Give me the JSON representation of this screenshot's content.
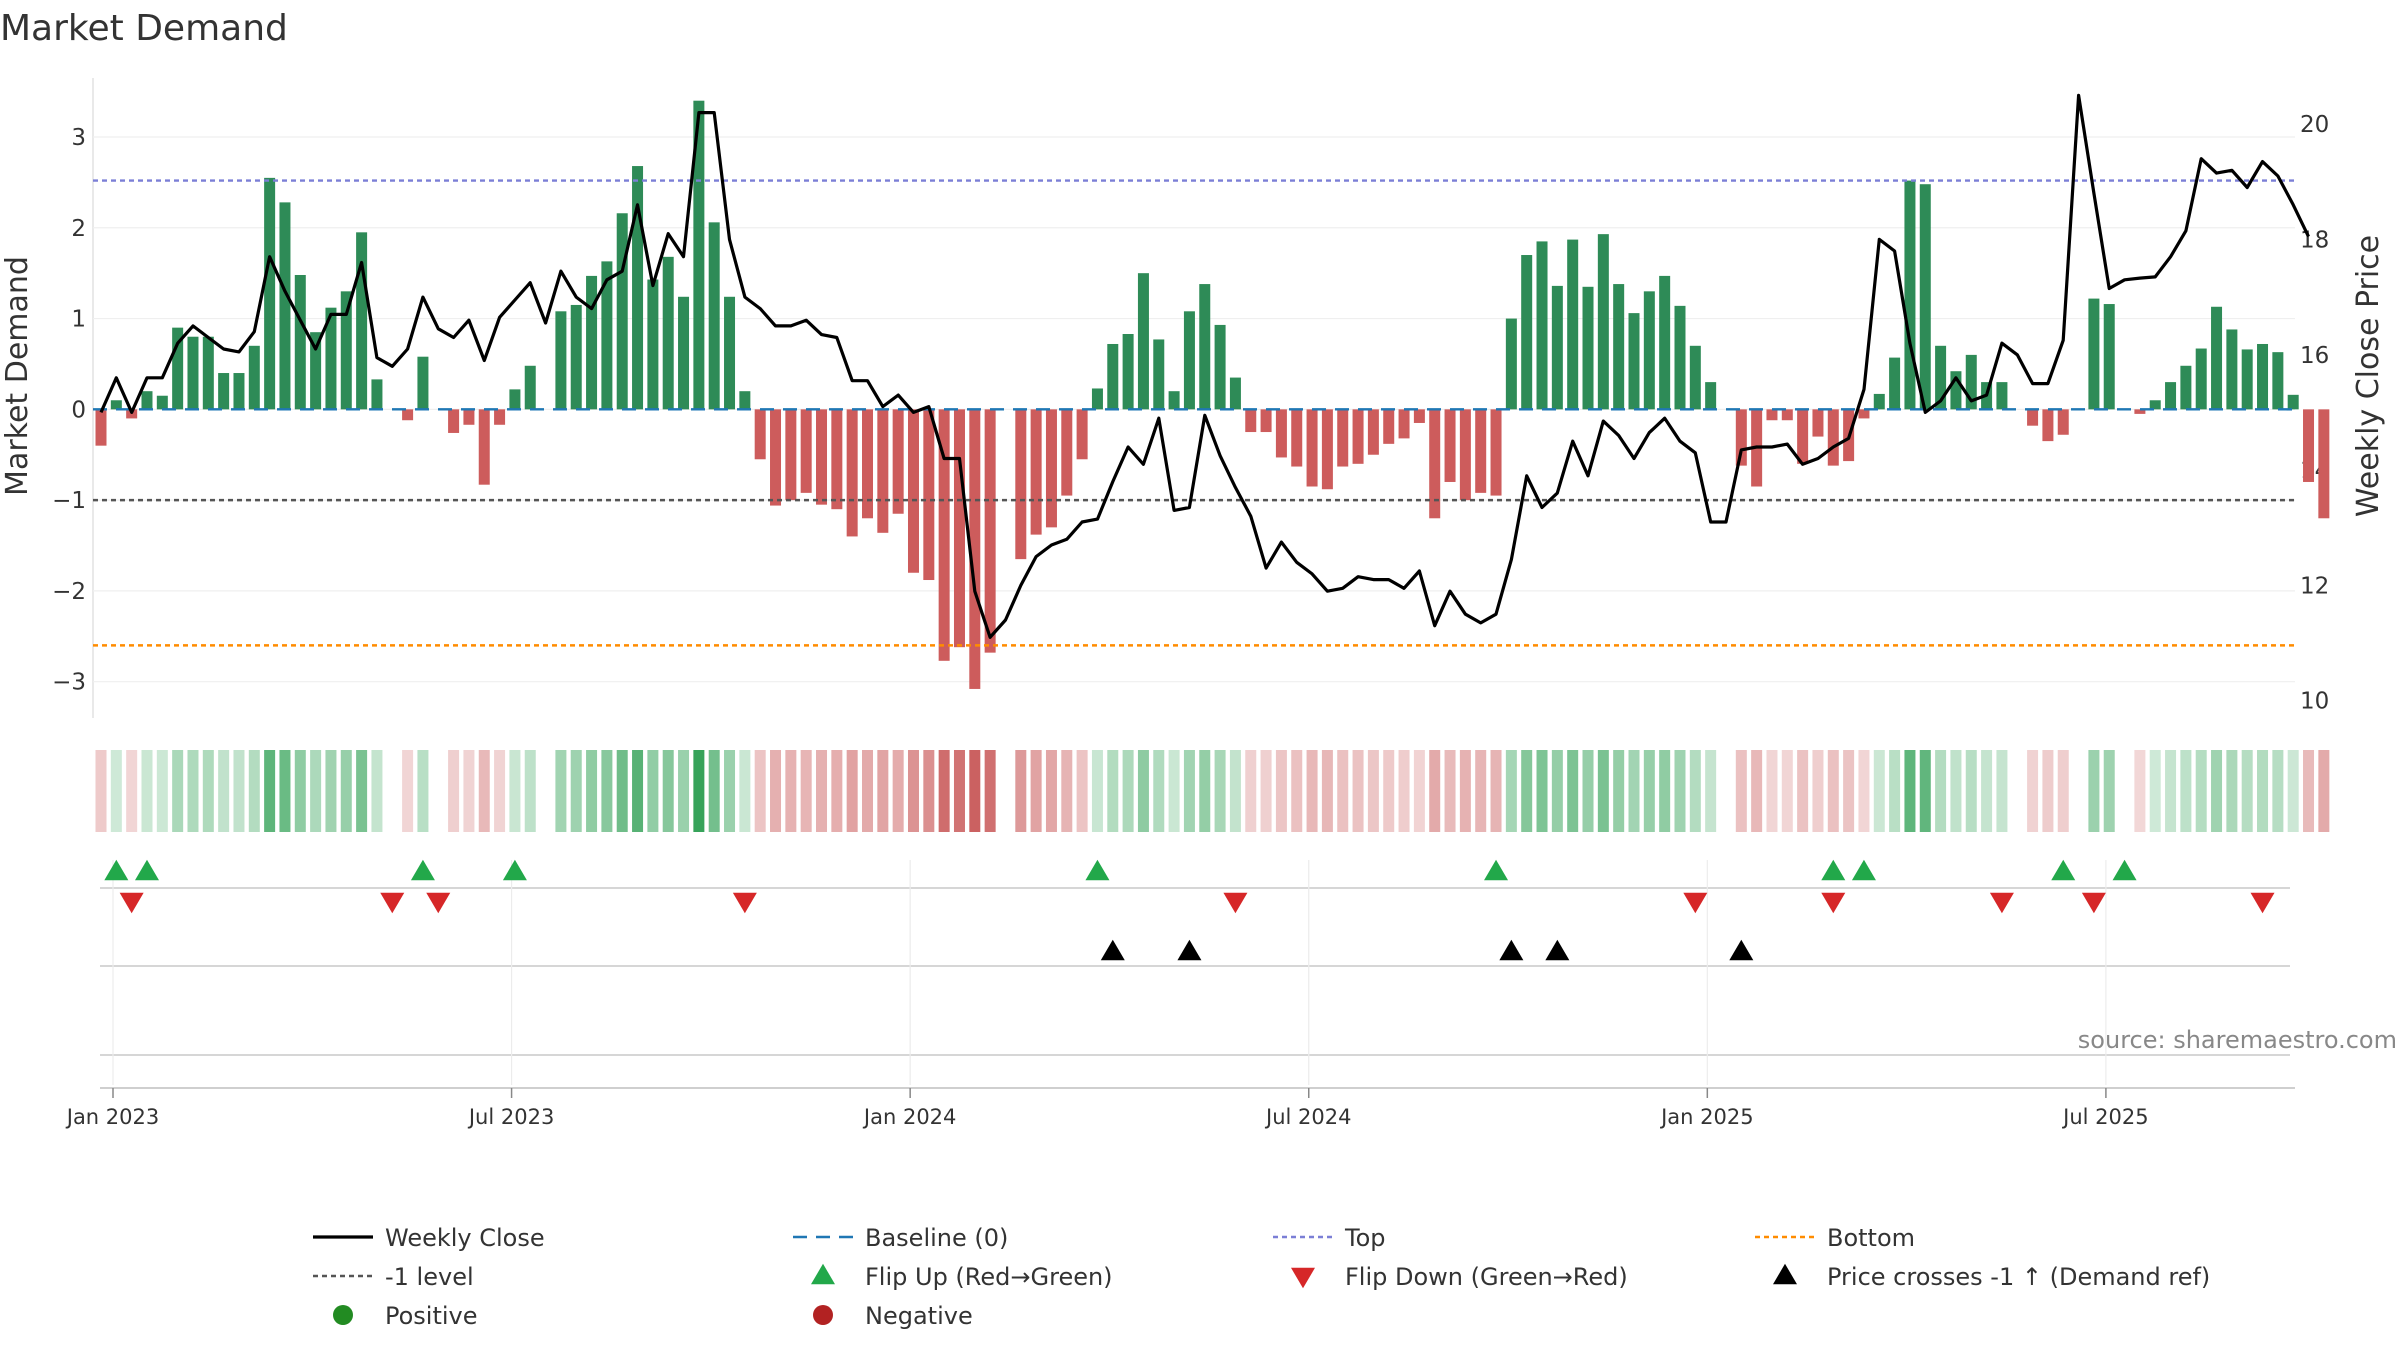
{
  "chart_data": {
    "type": "bar",
    "title": "Market Demand",
    "ylabel": "Market Demand",
    "y2label": "Weekly Close Price",
    "ylim": [
      -3.4,
      3.65
    ],
    "y2lim": [
      9.7,
      20.8
    ],
    "y_ticks": [
      3,
      2,
      1,
      0,
      -1,
      -2,
      -3
    ],
    "y_tick_labels": [
      "3",
      "2",
      "1",
      "0",
      "−1",
      "−2",
      "−3"
    ],
    "y2_ticks": [
      20,
      18,
      16,
      14,
      12,
      10
    ],
    "y2_tick_labels": [
      "20",
      "18",
      "16",
      "14",
      "12",
      "10"
    ],
    "x_tick_labels": [
      "Jan 2023",
      "Jul 2023",
      "Jan 2024",
      "Jul 2024",
      "Jan 2025",
      "Jul 2025"
    ],
    "x_tick_weeks": [
      0,
      26,
      52,
      78,
      104,
      130
    ],
    "reference_lines": {
      "top": 2.52,
      "bottom": -2.6,
      "minus_one": -1,
      "baseline": 0
    },
    "series": [
      {
        "name": "Market Demand",
        "values": [
          -0.4,
          0.1,
          -0.1,
          0.2,
          0.15,
          0.9,
          0.8,
          0.8,
          0.4,
          0.4,
          0.7,
          2.55,
          2.28,
          1.48,
          0.85,
          1.12,
          1.3,
          1.95,
          0.33,
          0,
          -0.12,
          0.58,
          0,
          -0.26,
          -0.17,
          -0.83,
          -0.17,
          0.22,
          0.48,
          0,
          1.08,
          1.15,
          1.47,
          1.63,
          2.16,
          2.68,
          1.43,
          1.68,
          1.24,
          3.4,
          2.06,
          1.24,
          0.2,
          -0.55,
          -1.06,
          -1.0,
          -0.92,
          -1.05,
          -1.1,
          -1.4,
          -1.2,
          -1.36,
          -1.15,
          -1.8,
          -1.88,
          -2.77,
          -2.62,
          -3.08,
          -2.68,
          0,
          -1.65,
          -1.38,
          -1.3,
          -0.95,
          -0.55,
          0.23,
          0.72,
          0.83,
          1.5,
          0.77,
          0.2,
          1.08,
          1.38,
          0.93,
          0.35,
          -0.25,
          -0.25,
          -0.53,
          -0.63,
          -0.85,
          -0.88,
          -0.63,
          -0.6,
          -0.5,
          -0.38,
          -0.32,
          -0.15,
          -1.2,
          -0.8,
          -1.0,
          -0.92,
          -0.95,
          1.0,
          1.7,
          1.85,
          1.36,
          1.87,
          1.35,
          1.93,
          1.38,
          1.06,
          1.3,
          1.47,
          1.14,
          0.7,
          0.3,
          0,
          -0.62,
          -0.85,
          -0.12,
          -0.12,
          -0.6,
          -0.3,
          -0.62,
          -0.57,
          -0.1,
          0.17,
          0.57,
          2.52,
          2.48,
          0.7,
          0.42,
          0.6,
          0.3,
          0.3,
          0,
          -0.18,
          -0.35,
          -0.28,
          0,
          1.22,
          1.16,
          0,
          -0.05,
          0.1,
          0.3,
          0.48,
          0.67,
          1.13,
          0.88,
          0.66,
          0.72,
          0.63,
          0.16,
          -0.8,
          -1.2
        ]
      },
      {
        "name": "Weekly Close",
        "values": [
          15.0,
          15.6,
          15.0,
          15.6,
          15.6,
          16.2,
          16.5,
          16.3,
          16.1,
          16.05,
          16.4,
          17.7,
          17.1,
          16.6,
          16.1,
          16.7,
          16.7,
          17.6,
          15.95,
          15.8,
          16.1,
          17.0,
          16.45,
          16.3,
          16.6,
          15.9,
          16.65,
          16.95,
          17.25,
          16.55,
          17.45,
          17.0,
          16.8,
          17.3,
          17.45,
          18.6,
          17.2,
          18.1,
          17.7,
          20.2,
          20.2,
          18.0,
          17.0,
          16.8,
          16.5,
          16.5,
          16.6,
          16.35,
          16.3,
          15.55,
          15.55,
          15.1,
          15.3,
          15.0,
          15.1,
          14.2,
          14.2,
          11.9,
          11.1,
          11.4,
          12.0,
          12.5,
          12.7,
          12.8,
          13.1,
          13.15,
          13.8,
          14.4,
          14.1,
          14.9,
          13.3,
          13.35,
          14.95,
          14.25,
          13.7,
          13.2,
          12.3,
          12.75,
          12.4,
          12.2,
          11.9,
          11.95,
          12.15,
          12.1,
          12.1,
          11.95,
          12.25,
          11.3,
          11.9,
          11.5,
          11.35,
          11.5,
          12.45,
          13.9,
          13.35,
          13.6,
          14.5,
          13.9,
          14.85,
          14.6,
          14.2,
          14.65,
          14.9,
          14.5,
          14.3,
          13.1,
          13.1,
          14.35,
          14.4,
          14.4,
          14.45,
          14.1,
          14.2,
          14.4,
          14.55,
          15.4,
          18.0,
          17.8,
          16.2,
          15.0,
          15.2,
          15.6,
          15.2,
          15.3,
          16.2,
          16.0,
          15.5,
          15.5,
          16.25,
          20.5,
          18.8,
          17.15,
          17.3,
          17.33,
          17.35,
          17.7,
          18.15,
          19.4,
          19.15,
          19.2,
          18.9,
          19.35,
          19.1,
          18.6,
          18.05
        ]
      }
    ],
    "flip_up_weeks": [
      1,
      3,
      21,
      27,
      65,
      91,
      113,
      115,
      128,
      132
    ],
    "flip_down_weeks": [
      2,
      19,
      22,
      42,
      74,
      104,
      113,
      124,
      130,
      141
    ],
    "price_cross_weeks": [
      66,
      71,
      92,
      95,
      107
    ],
    "colors": {
      "positive": "#2e8b57",
      "negative": "#cd5c5c",
      "price": "#000000",
      "baseline": "#1f77b4",
      "top": "#7b7fd6",
      "bottom": "#ff8c00",
      "minus_one": "#555555",
      "flip_up": "#22a84a",
      "flip_down": "#d62728",
      "cross": "#000000",
      "heat_pos_dark": "#37a35a",
      "heat_neg_dark": "#c75454"
    }
  },
  "legend": [
    {
      "key": "weekly_close",
      "label": "Weekly Close",
      "symbol": "solid-line",
      "color": "#000000"
    },
    {
      "key": "baseline",
      "label": "Baseline (0)",
      "symbol": "dashed-line",
      "color": "#1f77b4"
    },
    {
      "key": "top",
      "label": "Top",
      "symbol": "dotted-line",
      "color": "#7b7fd6"
    },
    {
      "key": "bottom",
      "label": "Bottom",
      "symbol": "dotted-line",
      "color": "#ff8c00"
    },
    {
      "key": "minus_one",
      "label": "-1 level",
      "symbol": "dotted-line",
      "color": "#555555"
    },
    {
      "key": "flip_up",
      "label": "Flip Up (Red→Green)",
      "symbol": "triangle-up",
      "color": "#22a84a"
    },
    {
      "key": "flip_down",
      "label": "Flip Down (Green→Red)",
      "symbol": "triangle-down",
      "color": "#d62728"
    },
    {
      "key": "price_cross",
      "label": "Price crosses -1 ↑ (Demand ref)",
      "symbol": "triangle-up",
      "color": "#000000"
    },
    {
      "key": "positive",
      "label": "Positive",
      "symbol": "circle",
      "color": "#228b22"
    },
    {
      "key": "negative",
      "label": "Negative",
      "symbol": "circle",
      "color": "#b22222"
    }
  ],
  "source": "source: sharemaestro.com"
}
